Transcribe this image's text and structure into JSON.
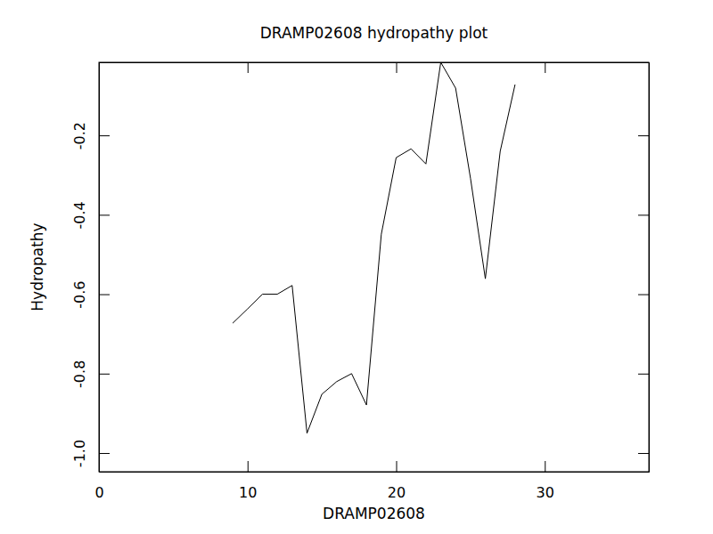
{
  "chart_data": {
    "type": "line",
    "title": "DRAMP02608 hydropathy plot",
    "x_label": "DRAMP02608",
    "y_label": "Hydropathy",
    "x": [
      9,
      10,
      11,
      12,
      13,
      14,
      15,
      16,
      17,
      18,
      19,
      20,
      21,
      22,
      23,
      24,
      25,
      26,
      27,
      28
    ],
    "values": [
      -0.673,
      -0.637,
      -0.6,
      -0.6,
      -0.578,
      -0.95,
      -0.852,
      -0.82,
      -0.8,
      -0.879,
      -0.449,
      -0.256,
      -0.234,
      -0.272,
      -0.016,
      -0.081,
      -0.308,
      -0.561,
      -0.24,
      -0.072
    ],
    "color": "#000000",
    "xlim": [
      0,
      37
    ],
    "xticks": [
      0,
      10,
      20,
      30
    ],
    "ylim": [
      -1.047,
      -0.016
    ],
    "yticks": [
      {
        "value": -1,
        "label": "-1.0"
      },
      -0.8,
      -0.6,
      -0.4,
      -0.2
    ],
    "grid": false
  }
}
